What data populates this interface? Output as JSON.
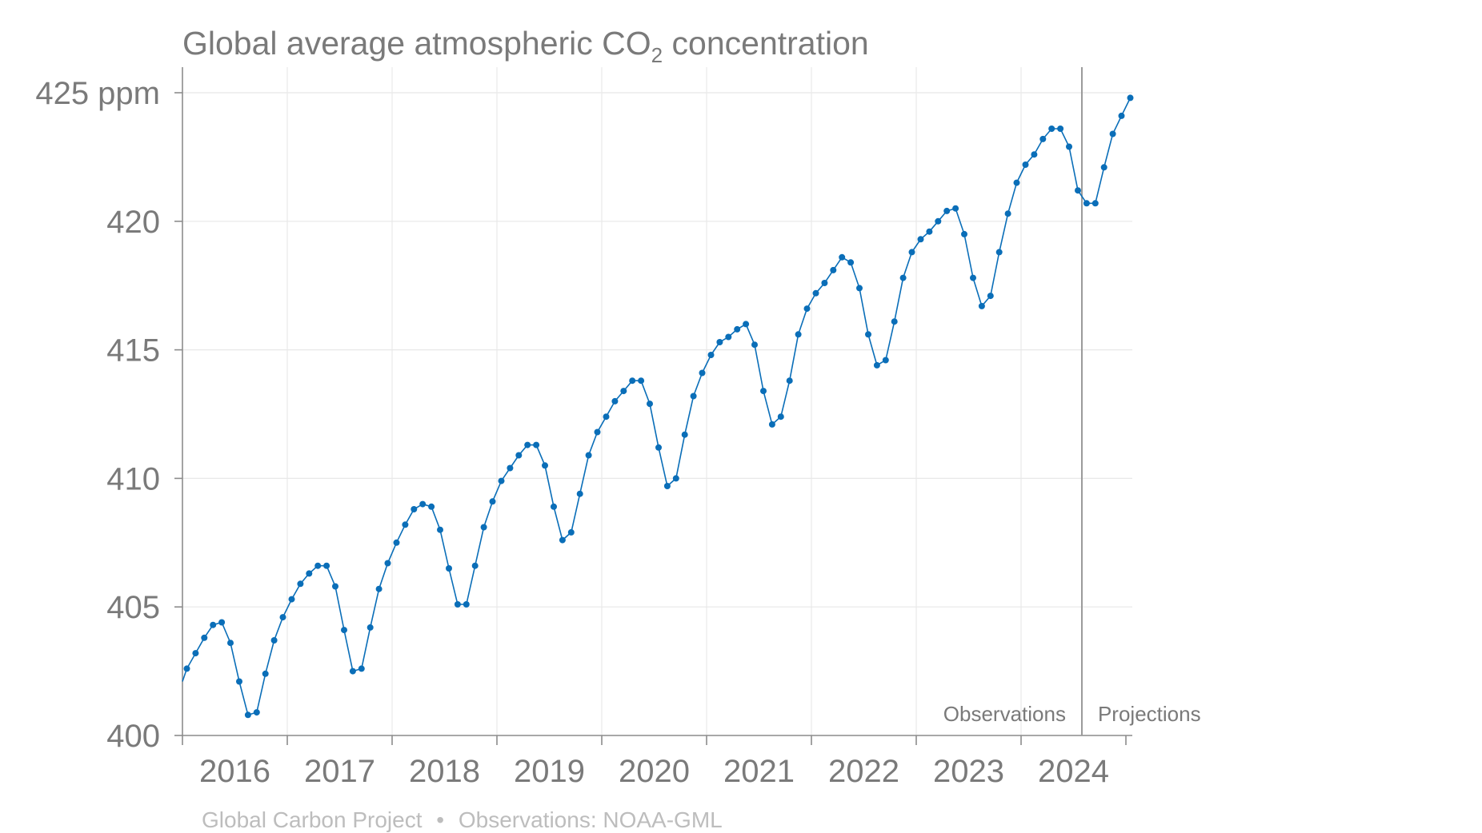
{
  "title": {
    "prefix": "Global average atmospheric CO",
    "subscript": "2",
    "suffix": " concentration"
  },
  "source": {
    "org": "Global Carbon Project",
    "sep": "•",
    "observations": "Observations: NOAA-GML"
  },
  "colors": {
    "series": "#0a6eb8",
    "text": "#7a7a7a",
    "source_text": "#bdbdbd"
  },
  "chart_data": {
    "type": "line",
    "ylim": [
      400,
      425
    ],
    "xlim": [
      2016.0,
      2025.0
    ],
    "y_tick_labels": [
      {
        "value": 400,
        "label": "400"
      },
      {
        "value": 405,
        "label": "405"
      },
      {
        "value": 410,
        "label": "410"
      },
      {
        "value": 415,
        "label": "415"
      },
      {
        "value": 420,
        "label": "420"
      },
      {
        "value": 425,
        "label": "425 ppm"
      }
    ],
    "x_tick_labels": [
      "2016",
      "2017",
      "2018",
      "2019",
      "2020",
      "2021",
      "2022",
      "2023",
      "2024"
    ],
    "grid": true,
    "regions": {
      "divider_x": 2024.58,
      "left_label": "Observations",
      "right_label": "Projections"
    },
    "series": [
      {
        "start": "2016-01",
        "values": [
          402.6,
          403.2,
          403.8,
          404.3,
          404.4,
          403.6,
          402.1,
          400.8,
          400.9,
          402.4,
          403.7,
          404.6,
          405.3,
          405.9,
          406.3,
          406.6,
          406.6,
          405.8,
          404.1,
          402.5,
          402.6,
          404.2,
          405.7,
          406.7,
          407.5,
          408.2,
          408.8,
          409.0,
          408.9,
          408.0,
          406.5,
          405.1,
          405.1,
          406.6,
          408.1,
          409.1,
          409.9,
          410.4,
          410.9,
          411.3,
          411.3,
          410.5,
          408.9,
          407.6,
          407.9,
          409.4,
          410.9,
          411.8,
          412.4,
          413.0,
          413.4,
          413.8,
          413.8,
          412.9,
          411.2,
          409.7,
          410.0,
          411.7,
          413.2,
          414.1,
          414.8,
          415.3,
          415.5,
          415.8,
          416.0,
          415.2,
          413.4,
          412.1,
          412.4,
          413.8,
          415.6,
          416.6,
          417.2,
          417.6,
          418.1,
          418.6,
          418.4,
          417.4,
          415.6,
          414.4,
          414.6,
          416.1,
          417.8,
          418.8,
          419.3,
          419.6,
          420.0,
          420.4,
          420.5,
          419.5,
          417.8,
          416.7,
          417.1,
          418.8,
          420.3,
          421.5,
          422.2,
          422.6,
          423.2,
          423.6,
          423.6,
          422.9,
          421.2,
          420.7,
          420.7,
          422.1,
          423.4,
          424.1,
          424.8
        ]
      }
    ]
  }
}
